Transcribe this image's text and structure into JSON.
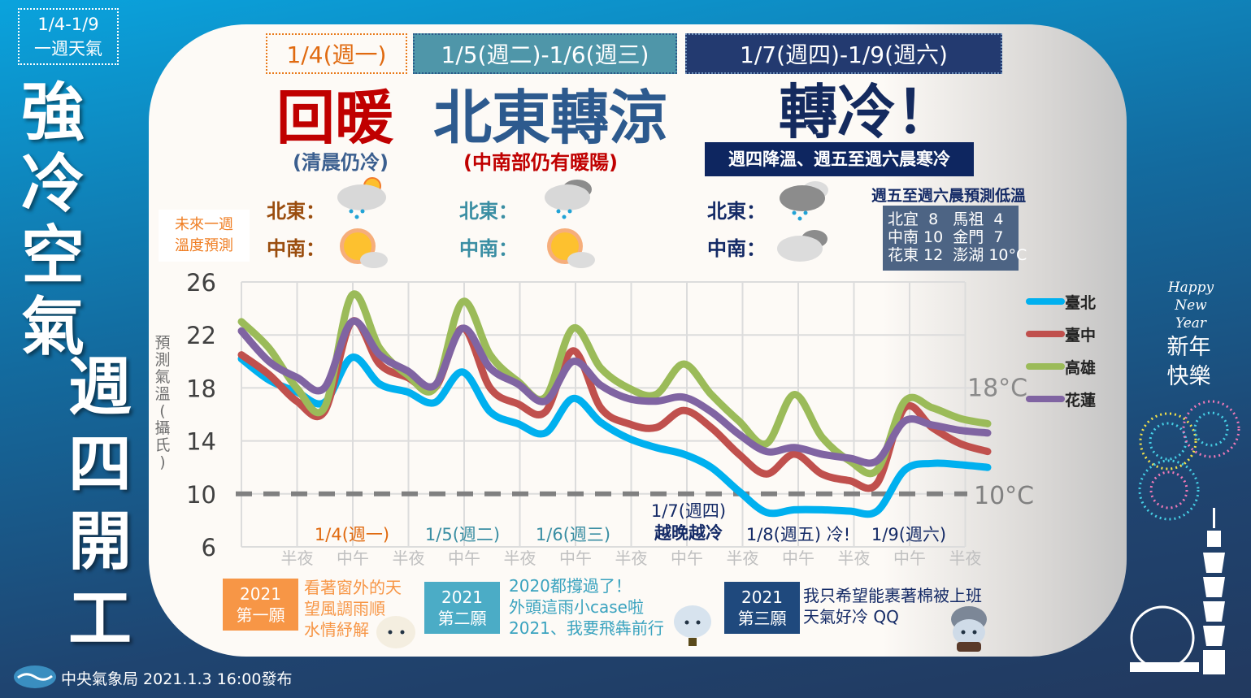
{
  "side": {
    "tag_line1": "1/4-1/9",
    "tag_line2": "一週天氣",
    "headline_a": [
      "強",
      "冷",
      "空",
      "氣"
    ],
    "headline_b": [
      "週",
      "四",
      "開",
      "工"
    ]
  },
  "header": {
    "period1": "1/4(週一)",
    "period2": "1/5(週二)-1/6(週三)",
    "period3": "1/7(週四)-1/9(週六)"
  },
  "summary": {
    "p1": {
      "title": "回暖",
      "subtitle": "(清晨仍冷)",
      "northeast_label": "北東：",
      "central_south_label": "中南：",
      "northeast_icon": "cloud-rain-sun-icon",
      "central_south_icon": "sun-cloud-icon"
    },
    "p2": {
      "title": "北東轉涼",
      "subtitle": "(中南部仍有暖陽)",
      "northeast_label": "北東：",
      "central_south_label": "中南：",
      "northeast_icon": "cloud-rain-icon",
      "central_south_icon": "sun-cloud-icon"
    },
    "p3": {
      "title": "轉冷！",
      "banner": "週四降溫、週五至週六晨寒冷",
      "northeast_label": "北東：",
      "central_south_label": "中南：",
      "northeast_icon": "dark-cloud-rain-icon",
      "central_south_icon": "cloudy-icon"
    },
    "chart_caption": "未來一週\n溫度預測",
    "low_title": "週五至週六晨預測低溫",
    "low_box": "北宜  8   馬祖  4\n中南 10  金門  7\n花東 12  澎湖 10°C"
  },
  "colors": {
    "taipei": "#00b0ef",
    "taichung": "#c0504d",
    "kaohsiung": "#9bbb59",
    "hualien": "#8064a2",
    "p1": "#e06a10",
    "p2": "#4f96a9",
    "p3": "#233a70",
    "headline_red": "#c00000"
  },
  "chart_data": {
    "type": "line",
    "ylabel": "預測氣溫(攝氏)",
    "ylim": [
      6,
      26
    ],
    "yticks": [
      6,
      10,
      14,
      18,
      22,
      26
    ],
    "grid": true,
    "legend": "right",
    "xtick_labels": [
      "半夜",
      "中午",
      "半夜",
      "中午",
      "半夜",
      "中午",
      "半夜",
      "中午",
      "半夜",
      "中午",
      "半夜",
      "中午",
      "半夜"
    ],
    "day_labels": [
      {
        "text": "1/4(週一)",
        "color": "#e06a10"
      },
      {
        "text": "1/5(週二)",
        "color": "#3a8ea3"
      },
      {
        "text": "1/6(週三)",
        "color": "#3a8ea3"
      },
      {
        "text": "1/7(週四)",
        "text2": "越晚越冷",
        "color": "#142a66"
      },
      {
        "text": "1/8(週五) 冷!",
        "color": "#142a66"
      },
      {
        "text": "1/9(週六)",
        "color": "#142a66"
      }
    ],
    "reference_lines": [
      {
        "value": 10,
        "label": "10°C",
        "style": "dashed"
      }
    ],
    "annotations": [
      {
        "text": "18°C",
        "value": 18
      }
    ],
    "x": [
      "1/3 12:00",
      "1/3 18:00",
      "1/4 00:00",
      "1/4 06:00",
      "1/4 12:00",
      "1/4 18:00",
      "1/5 00:00",
      "1/5 06:00",
      "1/5 12:00",
      "1/5 18:00",
      "1/6 00:00",
      "1/6 06:00",
      "1/6 12:00",
      "1/6 18:00",
      "1/7 00:00",
      "1/7 06:00",
      "1/7 12:00",
      "1/7 18:00",
      "1/8 00:00",
      "1/8 06:00",
      "1/8 12:00",
      "1/8 18:00",
      "1/9 00:00",
      "1/9 06:00",
      "1/9 12:00",
      "1/9 18:00",
      "1/10 00:00",
      "1/10 06:00"
    ],
    "series": [
      {
        "name": "臺北",
        "color": "#00b0ef",
        "values": [
          20.2,
          18.6,
          17.7,
          16.9,
          20.3,
          18.3,
          17.7,
          16.9,
          19.2,
          16.2,
          15.3,
          14.6,
          17.2,
          15.4,
          14.2,
          13.5,
          13.0,
          12.0,
          10.2,
          8.6,
          8.8,
          8.8,
          8.7,
          8.7,
          11.8,
          12.3,
          12.2,
          12.0
        ]
      },
      {
        "name": "臺中",
        "color": "#c0504d",
        "values": [
          20.5,
          19.0,
          17.0,
          16.2,
          23.0,
          19.8,
          18.8,
          18.0,
          22.5,
          18.0,
          16.8,
          16.2,
          20.8,
          16.5,
          15.3,
          15.0,
          16.3,
          15.0,
          13.0,
          11.5,
          13.0,
          11.5,
          11.0,
          10.8,
          16.5,
          15.0,
          13.8,
          13.2
        ]
      },
      {
        "name": "高雄",
        "color": "#9bbb59",
        "values": [
          23.0,
          21.0,
          18.0,
          16.5,
          25.0,
          21.0,
          19.0,
          18.0,
          24.5,
          20.5,
          18.5,
          17.3,
          22.5,
          19.5,
          18.0,
          17.5,
          19.8,
          17.5,
          15.5,
          13.8,
          17.5,
          14.3,
          12.5,
          11.8,
          17.0,
          16.5,
          15.7,
          15.3
        ]
      },
      {
        "name": "花蓮",
        "color": "#8064a2",
        "values": [
          22.3,
          20.0,
          18.8,
          18.0,
          23.0,
          20.5,
          19.3,
          18.2,
          22.5,
          19.5,
          18.3,
          17.0,
          20.0,
          18.2,
          17.2,
          17.0,
          17.3,
          16.2,
          14.5,
          13.2,
          13.5,
          13.0,
          12.7,
          12.5,
          15.5,
          15.2,
          14.8,
          14.6
        ]
      }
    ]
  },
  "wishes": [
    {
      "tag1": "2021",
      "tag2": "第一願",
      "text": "看著窗外的天\n望風調雨順\n水情紓解",
      "bg": "#f79646",
      "fg": "#f79646"
    },
    {
      "tag1": "2021",
      "tag2": "第二願",
      "text": "2020都撐過了！\n外頭這雨小case啦\n2021、我要飛犇前行",
      "bg": "#4bacc6",
      "fg": "#3aa3bf"
    },
    {
      "tag1": "2021",
      "tag2": "第三願",
      "text": "我只希望能裹著棉被上班\n天氣好冷 QQ",
      "bg": "#1f497d",
      "fg": "#142a66"
    }
  ],
  "new_year": {
    "line1": "Happy",
    "line2": "New Year",
    "line3": "新年",
    "line4": "快樂"
  },
  "footer": {
    "text": "中央氣象局 2021.1.3 16:00發布"
  }
}
